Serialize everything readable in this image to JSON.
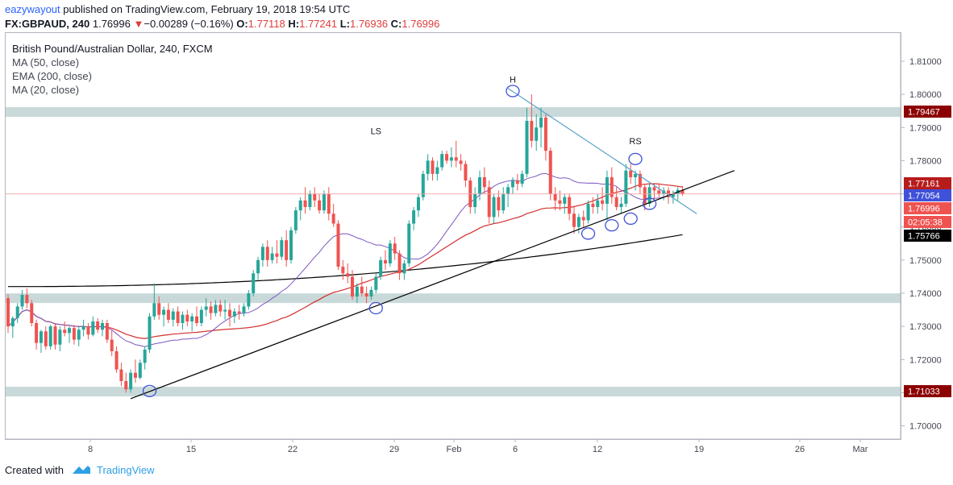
{
  "header": {
    "user": "eazywayout",
    "published_text": " published on TradingView.com, February 19, 2018 19:54 UTC",
    "symbol": "FX:GBPAUD, 240",
    "last": "1.76996",
    "change": "−0.00289 (−0.16%)",
    "o_label": "O:",
    "o": "1.77118",
    "h_label": "H:",
    "h": "1.77241",
    "l_label": "L:",
    "l": "1.76936",
    "c_label": "C:",
    "c": "1.76996"
  },
  "legend": {
    "title": "British Pound/Australian Dollar, 240, FXCM",
    "ma50": "MA (50, close)",
    "ema200": "EMA (200, close)",
    "ma20": "MA (20, close)"
  },
  "footer": {
    "created_with": "Created with",
    "brand": "TradingView"
  },
  "colors": {
    "up": "#26a69a",
    "down": "#ef5350",
    "zone": "#c9d9d9",
    "ma50": "#d32f2f",
    "ema200": "#000000",
    "ma20": "#7e57c2",
    "trend": "#000000",
    "resistance": "#5aa0c8",
    "marker": "#3f51d8"
  },
  "chart_data": {
    "type": "candlestick",
    "title": "British Pound/Australian Dollar, 240, FXCM",
    "x_tick_labels": [
      "8",
      "15",
      "22",
      "29",
      "Feb",
      "6",
      "12",
      "19",
      "26",
      "Mar"
    ],
    "y_tick_labels": [
      "1.70000",
      "1.71000",
      "1.72000",
      "1.73000",
      "1.74000",
      "1.75000",
      "1.76000",
      "1.77000",
      "1.78000",
      "1.79000",
      "1.80000",
      "1.81000"
    ],
    "ylim": [
      1.696,
      1.8185
    ],
    "grid": false,
    "support_resistance_zones": [
      {
        "level": 1.79467,
        "label": "1.79467"
      },
      {
        "level": 1.7385,
        "label": ""
      },
      {
        "level": 1.71033,
        "label": "1.71033"
      }
    ],
    "price_tags": [
      {
        "label": "1.77161",
        "value": 1.77161,
        "kind": "ma50"
      },
      {
        "label": "1.77054",
        "value": 1.77054,
        "kind": "ma20"
      },
      {
        "label": "1.76996",
        "value": 1.76996,
        "kind": "last"
      },
      {
        "label": "02:05:38",
        "value": 1.7669,
        "kind": "countdown"
      },
      {
        "label": "1.75766",
        "value": 1.75766,
        "kind": "ema200"
      }
    ],
    "pattern_labels": [
      {
        "text": "LS",
        "x": 78,
        "y": 1.788
      },
      {
        "text": "H",
        "x": 107,
        "y": 1.8035
      },
      {
        "text": "RS",
        "x": 133,
        "y": 1.785
      }
    ],
    "circle_markers": [
      {
        "x": 30,
        "y": 1.7105
      },
      {
        "x": 78,
        "y": 1.7355
      },
      {
        "x": 107,
        "y": 1.801
      },
      {
        "x": 123,
        "y": 1.758
      },
      {
        "x": 128,
        "y": 1.7605
      },
      {
        "x": 132,
        "y": 1.7625
      },
      {
        "x": 133,
        "y": 1.7805
      },
      {
        "x": 136,
        "y": 1.767
      }
    ],
    "trend_line": {
      "x": [
        26,
        154
      ],
      "y": [
        1.7082,
        1.777
      ]
    },
    "resistance_line": {
      "x": [
        106,
        146
      ],
      "y": [
        1.8018,
        1.764
      ]
    },
    "candles": [
      {
        "o": 1.7385,
        "h": 1.7397,
        "l": 1.728,
        "c": 1.73
      },
      {
        "o": 1.73,
        "h": 1.733,
        "l": 1.7265,
        "c": 1.7325
      },
      {
        "o": 1.7325,
        "h": 1.737,
        "l": 1.731,
        "c": 1.736
      },
      {
        "o": 1.736,
        "h": 1.741,
        "l": 1.735,
        "c": 1.7395
      },
      {
        "o": 1.7395,
        "h": 1.7415,
        "l": 1.7355,
        "c": 1.737
      },
      {
        "o": 1.737,
        "h": 1.738,
        "l": 1.73,
        "c": 1.731
      },
      {
        "o": 1.731,
        "h": 1.732,
        "l": 1.723,
        "c": 1.725
      },
      {
        "o": 1.725,
        "h": 1.729,
        "l": 1.722,
        "c": 1.7285
      },
      {
        "o": 1.7285,
        "h": 1.73,
        "l": 1.723,
        "c": 1.724
      },
      {
        "o": 1.724,
        "h": 1.7305,
        "l": 1.723,
        "c": 1.73
      },
      {
        "o": 1.73,
        "h": 1.731,
        "l": 1.723,
        "c": 1.7245
      },
      {
        "o": 1.7245,
        "h": 1.73,
        "l": 1.7225,
        "c": 1.729
      },
      {
        "o": 1.729,
        "h": 1.7315,
        "l": 1.727,
        "c": 1.728
      },
      {
        "o": 1.728,
        "h": 1.73,
        "l": 1.725,
        "c": 1.7295
      },
      {
        "o": 1.7295,
        "h": 1.7305,
        "l": 1.7245,
        "c": 1.726
      },
      {
        "o": 1.726,
        "h": 1.73,
        "l": 1.724,
        "c": 1.729
      },
      {
        "o": 1.729,
        "h": 1.732,
        "l": 1.727,
        "c": 1.73
      },
      {
        "o": 1.73,
        "h": 1.731,
        "l": 1.726,
        "c": 1.7275
      },
      {
        "o": 1.7275,
        "h": 1.733,
        "l": 1.727,
        "c": 1.7315
      },
      {
        "o": 1.7315,
        "h": 1.7325,
        "l": 1.728,
        "c": 1.729
      },
      {
        "o": 1.729,
        "h": 1.732,
        "l": 1.727,
        "c": 1.731
      },
      {
        "o": 1.731,
        "h": 1.732,
        "l": 1.725,
        "c": 1.726
      },
      {
        "o": 1.726,
        "h": 1.729,
        "l": 1.721,
        "c": 1.7225
      },
      {
        "o": 1.7225,
        "h": 1.724,
        "l": 1.716,
        "c": 1.717
      },
      {
        "o": 1.717,
        "h": 1.719,
        "l": 1.712,
        "c": 1.7135
      },
      {
        "o": 1.7135,
        "h": 1.716,
        "l": 1.71,
        "c": 1.711
      },
      {
        "o": 1.711,
        "h": 1.717,
        "l": 1.71,
        "c": 1.716
      },
      {
        "o": 1.716,
        "h": 1.72,
        "l": 1.713,
        "c": 1.7145
      },
      {
        "o": 1.7145,
        "h": 1.72,
        "l": 1.714,
        "c": 1.719
      },
      {
        "o": 1.719,
        "h": 1.724,
        "l": 1.717,
        "c": 1.723
      },
      {
        "o": 1.723,
        "h": 1.734,
        "l": 1.722,
        "c": 1.733
      },
      {
        "o": 1.733,
        "h": 1.743,
        "l": 1.732,
        "c": 1.737
      },
      {
        "o": 1.737,
        "h": 1.739,
        "l": 1.732,
        "c": 1.7335
      },
      {
        "o": 1.7335,
        "h": 1.736,
        "l": 1.73,
        "c": 1.735
      },
      {
        "o": 1.735,
        "h": 1.737,
        "l": 1.731,
        "c": 1.732
      },
      {
        "o": 1.732,
        "h": 1.7355,
        "l": 1.73,
        "c": 1.7345
      },
      {
        "o": 1.7345,
        "h": 1.736,
        "l": 1.73,
        "c": 1.731
      },
      {
        "o": 1.731,
        "h": 1.7345,
        "l": 1.729,
        "c": 1.7335
      },
      {
        "o": 1.7335,
        "h": 1.735,
        "l": 1.73,
        "c": 1.7315
      },
      {
        "o": 1.7315,
        "h": 1.734,
        "l": 1.7285,
        "c": 1.733
      },
      {
        "o": 1.733,
        "h": 1.736,
        "l": 1.73,
        "c": 1.731
      },
      {
        "o": 1.731,
        "h": 1.736,
        "l": 1.73,
        "c": 1.735
      },
      {
        "o": 1.735,
        "h": 1.7385,
        "l": 1.733,
        "c": 1.736
      },
      {
        "o": 1.736,
        "h": 1.7375,
        "l": 1.732,
        "c": 1.734
      },
      {
        "o": 1.734,
        "h": 1.738,
        "l": 1.733,
        "c": 1.7365
      },
      {
        "o": 1.7365,
        "h": 1.738,
        "l": 1.733,
        "c": 1.7345
      },
      {
        "o": 1.7345,
        "h": 1.738,
        "l": 1.732,
        "c": 1.735
      },
      {
        "o": 1.735,
        "h": 1.737,
        "l": 1.73,
        "c": 1.733
      },
      {
        "o": 1.733,
        "h": 1.7355,
        "l": 1.731,
        "c": 1.7345
      },
      {
        "o": 1.7345,
        "h": 1.7365,
        "l": 1.732,
        "c": 1.734
      },
      {
        "o": 1.734,
        "h": 1.737,
        "l": 1.733,
        "c": 1.736
      },
      {
        "o": 1.736,
        "h": 1.741,
        "l": 1.735,
        "c": 1.74
      },
      {
        "o": 1.74,
        "h": 1.747,
        "l": 1.739,
        "c": 1.746
      },
      {
        "o": 1.746,
        "h": 1.751,
        "l": 1.744,
        "c": 1.75
      },
      {
        "o": 1.75,
        "h": 1.755,
        "l": 1.748,
        "c": 1.754
      },
      {
        "o": 1.754,
        "h": 1.756,
        "l": 1.748,
        "c": 1.75
      },
      {
        "o": 1.75,
        "h": 1.754,
        "l": 1.749,
        "c": 1.752
      },
      {
        "o": 1.752,
        "h": 1.756,
        "l": 1.749,
        "c": 1.751
      },
      {
        "o": 1.751,
        "h": 1.757,
        "l": 1.75,
        "c": 1.756
      },
      {
        "o": 1.756,
        "h": 1.759,
        "l": 1.748,
        "c": 1.75
      },
      {
        "o": 1.75,
        "h": 1.76,
        "l": 1.749,
        "c": 1.759
      },
      {
        "o": 1.759,
        "h": 1.766,
        "l": 1.758,
        "c": 1.765
      },
      {
        "o": 1.765,
        "h": 1.769,
        "l": 1.762,
        "c": 1.768
      },
      {
        "o": 1.768,
        "h": 1.772,
        "l": 1.764,
        "c": 1.766
      },
      {
        "o": 1.766,
        "h": 1.771,
        "l": 1.765,
        "c": 1.77
      },
      {
        "o": 1.77,
        "h": 1.772,
        "l": 1.766,
        "c": 1.768
      },
      {
        "o": 1.768,
        "h": 1.77,
        "l": 1.764,
        "c": 1.765
      },
      {
        "o": 1.765,
        "h": 1.771,
        "l": 1.764,
        "c": 1.77
      },
      {
        "o": 1.77,
        "h": 1.772,
        "l": 1.762,
        "c": 1.764
      },
      {
        "o": 1.764,
        "h": 1.767,
        "l": 1.76,
        "c": 1.761
      },
      {
        "o": 1.761,
        "h": 1.762,
        "l": 1.747,
        "c": 1.748
      },
      {
        "o": 1.748,
        "h": 1.75,
        "l": 1.744,
        "c": 1.746
      },
      {
        "o": 1.746,
        "h": 1.749,
        "l": 1.743,
        "c": 1.745
      },
      {
        "o": 1.745,
        "h": 1.747,
        "l": 1.738,
        "c": 1.739
      },
      {
        "o": 1.739,
        "h": 1.743,
        "l": 1.737,
        "c": 1.742
      },
      {
        "o": 1.742,
        "h": 1.745,
        "l": 1.739,
        "c": 1.74
      },
      {
        "o": 1.74,
        "h": 1.742,
        "l": 1.737,
        "c": 1.739
      },
      {
        "o": 1.739,
        "h": 1.742,
        "l": 1.738,
        "c": 1.741
      },
      {
        "o": 1.741,
        "h": 1.746,
        "l": 1.74,
        "c": 1.745
      },
      {
        "o": 1.745,
        "h": 1.751,
        "l": 1.744,
        "c": 1.75
      },
      {
        "o": 1.75,
        "h": 1.753,
        "l": 1.747,
        "c": 1.749
      },
      {
        "o": 1.749,
        "h": 1.756,
        "l": 1.748,
        "c": 1.755
      },
      {
        "o": 1.755,
        "h": 1.757,
        "l": 1.75,
        "c": 1.752
      },
      {
        "o": 1.752,
        "h": 1.753,
        "l": 1.744,
        "c": 1.746
      },
      {
        "o": 1.746,
        "h": 1.75,
        "l": 1.744,
        "c": 1.749
      },
      {
        "o": 1.749,
        "h": 1.762,
        "l": 1.748,
        "c": 1.761
      },
      {
        "o": 1.761,
        "h": 1.766,
        "l": 1.759,
        "c": 1.765
      },
      {
        "o": 1.765,
        "h": 1.77,
        "l": 1.763,
        "c": 1.769
      },
      {
        "o": 1.769,
        "h": 1.777,
        "l": 1.768,
        "c": 1.776
      },
      {
        "o": 1.776,
        "h": 1.782,
        "l": 1.774,
        "c": 1.78
      },
      {
        "o": 1.78,
        "h": 1.781,
        "l": 1.774,
        "c": 1.776
      },
      {
        "o": 1.776,
        "h": 1.78,
        "l": 1.774,
        "c": 1.778
      },
      {
        "o": 1.778,
        "h": 1.783,
        "l": 1.777,
        "c": 1.782
      },
      {
        "o": 1.782,
        "h": 1.783,
        "l": 1.779,
        "c": 1.78
      },
      {
        "o": 1.78,
        "h": 1.784,
        "l": 1.778,
        "c": 1.781
      },
      {
        "o": 1.781,
        "h": 1.786,
        "l": 1.778,
        "c": 1.78
      },
      {
        "o": 1.78,
        "h": 1.782,
        "l": 1.777,
        "c": 1.779
      },
      {
        "o": 1.779,
        "h": 1.78,
        "l": 1.772,
        "c": 1.774
      },
      {
        "o": 1.774,
        "h": 1.775,
        "l": 1.764,
        "c": 1.766
      },
      {
        "o": 1.766,
        "h": 1.772,
        "l": 1.764,
        "c": 1.77
      },
      {
        "o": 1.77,
        "h": 1.777,
        "l": 1.768,
        "c": 1.775
      },
      {
        "o": 1.775,
        "h": 1.778,
        "l": 1.77,
        "c": 1.772
      },
      {
        "o": 1.772,
        "h": 1.774,
        "l": 1.761,
        "c": 1.763
      },
      {
        "o": 1.763,
        "h": 1.77,
        "l": 1.761,
        "c": 1.769
      },
      {
        "o": 1.769,
        "h": 1.771,
        "l": 1.763,
        "c": 1.765
      },
      {
        "o": 1.765,
        "h": 1.772,
        "l": 1.764,
        "c": 1.77
      },
      {
        "o": 1.77,
        "h": 1.773,
        "l": 1.766,
        "c": 1.772
      },
      {
        "o": 1.772,
        "h": 1.775,
        "l": 1.77,
        "c": 1.774
      },
      {
        "o": 1.774,
        "h": 1.776,
        "l": 1.771,
        "c": 1.773
      },
      {
        "o": 1.773,
        "h": 1.777,
        "l": 1.772,
        "c": 1.776
      },
      {
        "o": 1.776,
        "h": 1.796,
        "l": 1.775,
        "c": 1.792
      },
      {
        "o": 1.792,
        "h": 1.8,
        "l": 1.784,
        "c": 1.786
      },
      {
        "o": 1.786,
        "h": 1.794,
        "l": 1.783,
        "c": 1.79
      },
      {
        "o": 1.79,
        "h": 1.796,
        "l": 1.784,
        "c": 1.793
      },
      {
        "o": 1.793,
        "h": 1.794,
        "l": 1.78,
        "c": 1.783
      },
      {
        "o": 1.783,
        "h": 1.784,
        "l": 1.768,
        "c": 1.77
      },
      {
        "o": 1.77,
        "h": 1.772,
        "l": 1.765,
        "c": 1.768
      },
      {
        "o": 1.768,
        "h": 1.771,
        "l": 1.765,
        "c": 1.767
      },
      {
        "o": 1.767,
        "h": 1.77,
        "l": 1.764,
        "c": 1.769
      },
      {
        "o": 1.769,
        "h": 1.77,
        "l": 1.762,
        "c": 1.764
      },
      {
        "o": 1.764,
        "h": 1.766,
        "l": 1.758,
        "c": 1.76
      },
      {
        "o": 1.76,
        "h": 1.764,
        "l": 1.758,
        "c": 1.763
      },
      {
        "o": 1.763,
        "h": 1.765,
        "l": 1.76,
        "c": 1.762
      },
      {
        "o": 1.762,
        "h": 1.768,
        "l": 1.761,
        "c": 1.767
      },
      {
        "o": 1.767,
        "h": 1.769,
        "l": 1.764,
        "c": 1.766
      },
      {
        "o": 1.766,
        "h": 1.77,
        "l": 1.764,
        "c": 1.768
      },
      {
        "o": 1.768,
        "h": 1.772,
        "l": 1.765,
        "c": 1.767
      },
      {
        "o": 1.767,
        "h": 1.777,
        "l": 1.762,
        "c": 1.775
      },
      {
        "o": 1.775,
        "h": 1.778,
        "l": 1.767,
        "c": 1.769
      },
      {
        "o": 1.769,
        "h": 1.772,
        "l": 1.765,
        "c": 1.766
      },
      {
        "o": 1.766,
        "h": 1.769,
        "l": 1.764,
        "c": 1.767
      },
      {
        "o": 1.767,
        "h": 1.779,
        "l": 1.766,
        "c": 1.777
      },
      {
        "o": 1.777,
        "h": 1.779,
        "l": 1.773,
        "c": 1.775
      },
      {
        "o": 1.775,
        "h": 1.777,
        "l": 1.771,
        "c": 1.776
      },
      {
        "o": 1.776,
        "h": 1.777,
        "l": 1.77,
        "c": 1.772
      },
      {
        "o": 1.772,
        "h": 1.773,
        "l": 1.765,
        "c": 1.767
      },
      {
        "o": 1.767,
        "h": 1.773,
        "l": 1.766,
        "c": 1.772
      },
      {
        "o": 1.772,
        "h": 1.773,
        "l": 1.768,
        "c": 1.771
      },
      {
        "o": 1.771,
        "h": 1.773,
        "l": 1.769,
        "c": 1.77
      },
      {
        "o": 1.77,
        "h": 1.772,
        "l": 1.768,
        "c": 1.771
      },
      {
        "o": 1.771,
        "h": 1.772,
        "l": 1.767,
        "c": 1.769
      },
      {
        "o": 1.769,
        "h": 1.771,
        "l": 1.767,
        "c": 1.77
      },
      {
        "o": 1.77,
        "h": 1.772,
        "l": 1.768,
        "c": 1.7712
      },
      {
        "o": 1.7712,
        "h": 1.7724,
        "l": 1.7694,
        "c": 1.77
      }
    ]
  }
}
